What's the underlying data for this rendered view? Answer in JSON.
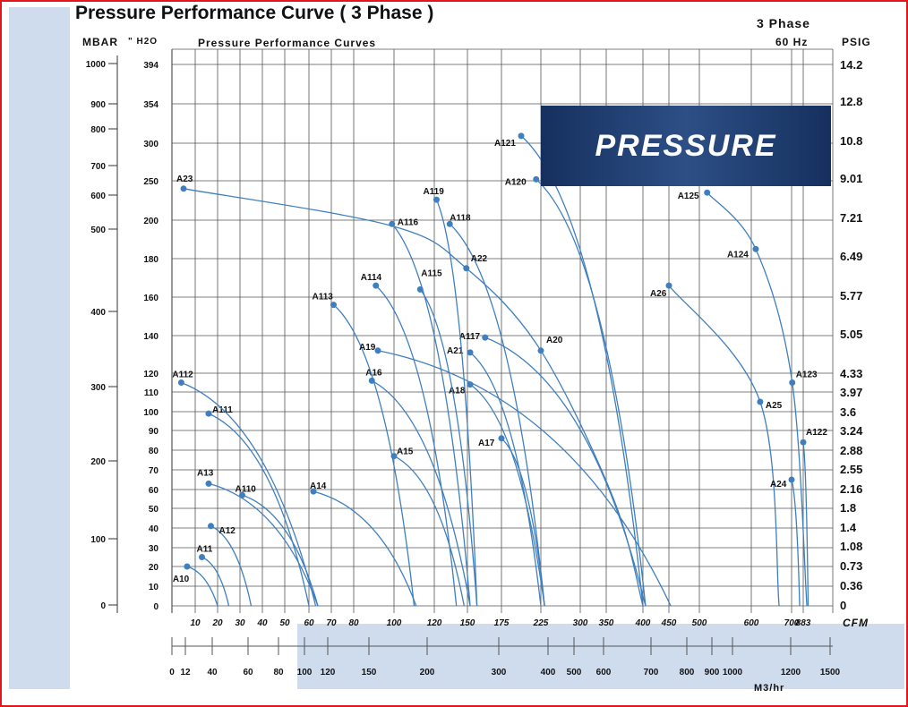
{
  "title": "Pressure Performance Curve ( 3 Phase )",
  "chart_data": {
    "type": "line",
    "title": "Pressure Performance Curves",
    "phase": "3 Phase",
    "frequency": "60 Hz",
    "banner": "PRESSURE",
    "x_axis": {
      "label": "CFM",
      "ticks": [
        10,
        20,
        30,
        40,
        50,
        60,
        70,
        80,
        100,
        120,
        150,
        175,
        225,
        300,
        350,
        400,
        450,
        500,
        600,
        700,
        883
      ]
    },
    "x2_axis": {
      "label": "M3/hr",
      "ticks": [
        0,
        12,
        40,
        60,
        80,
        100,
        120,
        150,
        200,
        300,
        400,
        500,
        600,
        700,
        800,
        900,
        1000,
        1200,
        1500
      ]
    },
    "y_axis": {
      "label": "\" H2O",
      "ticks": [
        394,
        354,
        300,
        250,
        200,
        180,
        160,
        140,
        120,
        110,
        100,
        90,
        80,
        70,
        60,
        50,
        40,
        30,
        20,
        10,
        0
      ]
    },
    "y_left": {
      "label": "MBAR",
      "ticks": [
        1000,
        900,
        800,
        700,
        600,
        500,
        400,
        300,
        200,
        100,
        0
      ]
    },
    "y_right": {
      "label": "PSIG",
      "ticks": [
        "14.2",
        "12.8",
        "10.8",
        "9.01",
        "7.21",
        "6.49",
        "5.77",
        "5.05",
        "4.33",
        "3.97",
        "3.6",
        "3.24",
        "2.88",
        "2.55",
        "2.16",
        "1.8",
        "1.4",
        "1.08",
        "0.73",
        "0.36",
        "0"
      ]
    },
    "series": [
      {
        "name": "A10",
        "points": [
          [
            6.5,
            20
          ],
          [
            20,
            0
          ]
        ]
      },
      {
        "name": "A11",
        "points": [
          [
            13,
            25
          ],
          [
            25,
            0
          ]
        ]
      },
      {
        "name": "A12",
        "points": [
          [
            17,
            41
          ],
          [
            35,
            0
          ]
        ]
      },
      {
        "name": "A13",
        "points": [
          [
            16,
            63
          ],
          [
            64,
            0
          ]
        ]
      },
      {
        "name": "A110",
        "points": [
          [
            31,
            57
          ],
          [
            64,
            0
          ]
        ]
      },
      {
        "name": "A111",
        "points": [
          [
            16,
            99
          ],
          [
            60,
            0
          ]
        ]
      },
      {
        "name": "A112",
        "points": [
          [
            4,
            115
          ],
          [
            63,
            0
          ]
        ]
      },
      {
        "name": "A14",
        "points": [
          [
            62,
            59
          ],
          [
            111,
            0
          ]
        ]
      },
      {
        "name": "A15",
        "points": [
          [
            100,
            77
          ],
          [
            147,
            0
          ]
        ]
      },
      {
        "name": "A16",
        "points": [
          [
            89,
            116
          ],
          [
            152,
            0
          ]
        ]
      },
      {
        "name": "A113",
        "points": [
          [
            71,
            156
          ],
          [
            110,
            0
          ]
        ]
      },
      {
        "name": "A114",
        "points": [
          [
            91,
            166
          ],
          [
            140,
            0
          ]
        ]
      },
      {
        "name": "A19",
        "points": [
          [
            92,
            132
          ],
          [
            453,
            0
          ]
        ]
      },
      {
        "name": "A18",
        "points": [
          [
            152,
            114
          ],
          [
            232,
            0
          ]
        ]
      },
      {
        "name": "A17",
        "points": [
          [
            175,
            86
          ],
          [
            232,
            0
          ]
        ]
      },
      {
        "name": "A21",
        "points": [
          [
            152,
            131
          ],
          [
            225,
            0
          ]
        ]
      },
      {
        "name": "A117",
        "points": [
          [
            163,
            139
          ],
          [
            405,
            0
          ]
        ]
      },
      {
        "name": "A115",
        "points": [
          [
            113,
            164
          ],
          [
            157,
            0
          ]
        ]
      },
      {
        "name": "A116",
        "points": [
          [
            99,
            198
          ],
          [
            152,
            0
          ]
        ]
      },
      {
        "name": "A118",
        "points": [
          [
            134,
            198
          ],
          [
            232,
            0
          ]
        ]
      },
      {
        "name": "A119",
        "points": [
          [
            122,
            226
          ],
          [
            157,
            0
          ]
        ]
      },
      {
        "name": "A23",
        "points": [
          [
            5,
            240
          ],
          [
            99,
            197
          ],
          [
            149,
            175
          ],
          [
            225,
            132
          ],
          [
            360,
            55
          ],
          [
            400,
            0
          ]
        ]
      },
      {
        "name": "A22",
        "points": [
          [
            149,
            175
          ]
        ]
      },
      {
        "name": "A20",
        "points": [
          [
            225,
            132
          ]
        ]
      },
      {
        "name": "A121",
        "points": [
          [
            200,
            310
          ],
          [
            400,
            0
          ]
        ]
      },
      {
        "name": "A120",
        "points": [
          [
            219,
            252
          ],
          [
            405,
            0
          ]
        ]
      },
      {
        "name": "A26",
        "points": [
          [
            450,
            166
          ],
          [
            622,
            105
          ],
          [
            669,
            0
          ]
        ]
      },
      {
        "name": "A25",
        "points": [
          [
            622,
            105
          ]
        ]
      },
      {
        "name": "A125",
        "points": [
          [
            515,
            235
          ],
          [
            611,
            185
          ],
          [
            710,
            115
          ],
          [
            940,
            0
          ]
        ]
      },
      {
        "name": "A124",
        "points": [
          [
            611,
            185
          ]
        ]
      },
      {
        "name": "A123",
        "points": [
          [
            710,
            115
          ]
        ]
      },
      {
        "name": "A122",
        "points": [
          [
            883,
            84
          ],
          [
            960,
            0
          ]
        ]
      },
      {
        "name": "A24",
        "points": [
          [
            700,
            65
          ],
          [
            827,
            0
          ]
        ]
      }
    ],
    "line_color": "#3f7fbf"
  }
}
